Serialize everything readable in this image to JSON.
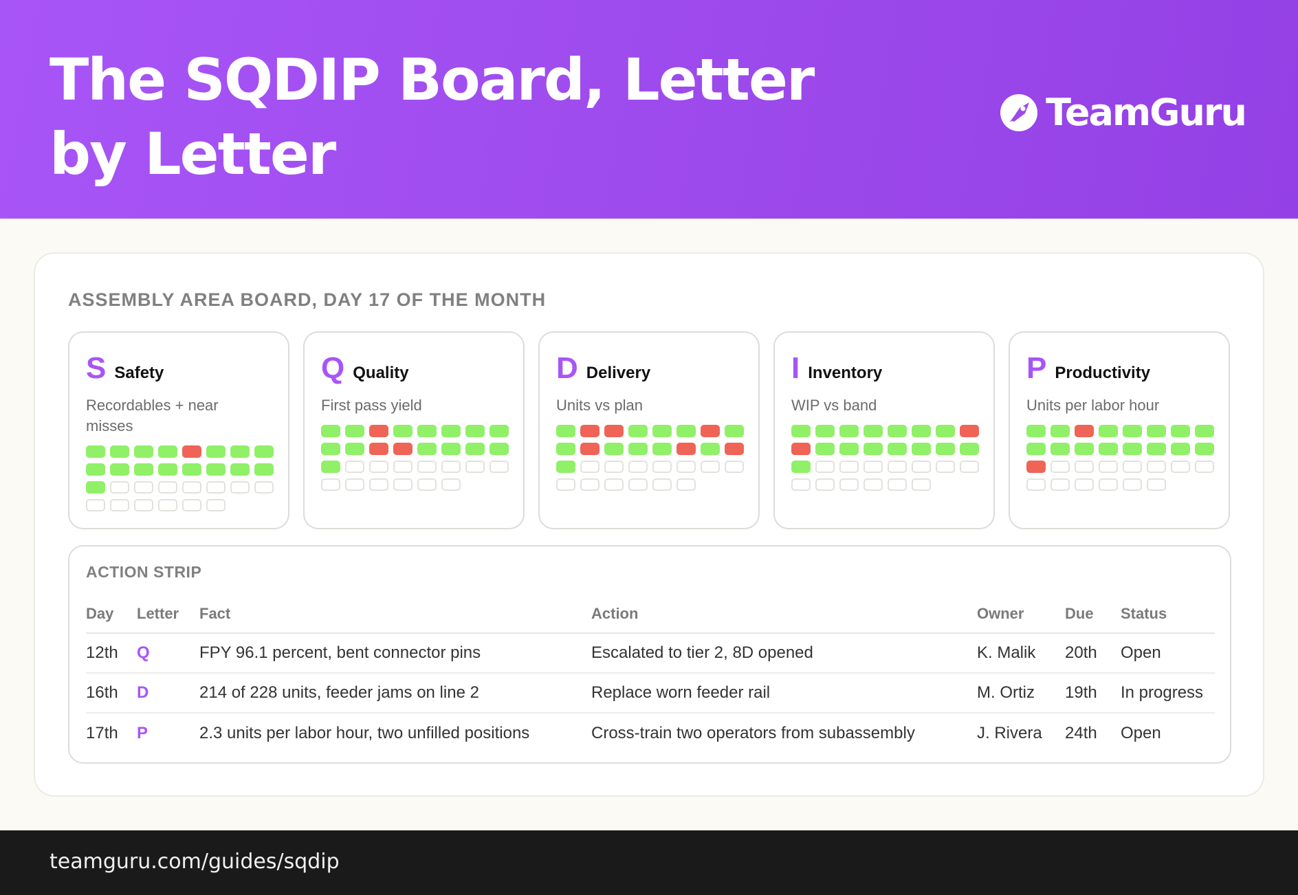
{
  "header": {
    "title": "The SQDIP Board, Letter by Letter",
    "brand": "TeamGuru"
  },
  "board": {
    "title": "ASSEMBLY AREA BOARD, DAY 17 OF THE MONTH",
    "cards": [
      {
        "letter": "S",
        "name": "Safety",
        "subtitle": "Recordables + near misses",
        "days": [
          "g",
          "g",
          "g",
          "g",
          "r",
          "g",
          "g",
          "g",
          "g",
          "g",
          "g",
          "g",
          "g",
          "g",
          "g",
          "g",
          "g"
        ]
      },
      {
        "letter": "Q",
        "name": "Quality",
        "subtitle": "First pass yield",
        "days": [
          "g",
          "g",
          "r",
          "g",
          "g",
          "g",
          "g",
          "g",
          "g",
          "g",
          "r",
          "r",
          "g",
          "g",
          "g",
          "g",
          "g"
        ]
      },
      {
        "letter": "D",
        "name": "Delivery",
        "subtitle": "Units vs plan",
        "days": [
          "g",
          "r",
          "r",
          "g",
          "g",
          "g",
          "r",
          "g",
          "g",
          "r",
          "g",
          "g",
          "g",
          "r",
          "g",
          "r",
          "g"
        ]
      },
      {
        "letter": "I",
        "name": "Inventory",
        "subtitle": "WIP vs band",
        "days": [
          "g",
          "g",
          "g",
          "g",
          "g",
          "g",
          "g",
          "r",
          "r",
          "g",
          "g",
          "g",
          "g",
          "g",
          "g",
          "g",
          "g"
        ]
      },
      {
        "letter": "P",
        "name": "Productivity",
        "subtitle": "Units per labor hour",
        "days": [
          "g",
          "g",
          "r",
          "g",
          "g",
          "g",
          "g",
          "g",
          "g",
          "g",
          "g",
          "g",
          "g",
          "g",
          "g",
          "g",
          "r"
        ]
      }
    ],
    "days_in_month": 30
  },
  "action_strip": {
    "title": "ACTION STRIP",
    "columns": [
      "Day",
      "Letter",
      "Fact",
      "Action",
      "Owner",
      "Due",
      "Status"
    ],
    "rows": [
      [
        "12th",
        "Q",
        "FPY 96.1 percent, bent connector pins",
        "Escalated to tier 2, 8D opened",
        "K. Malik",
        "20th",
        "Open"
      ],
      [
        "16th",
        "D",
        "214 of 228 units, feeder jams on line 2",
        "Replace worn feeder rail",
        "M. Ortiz",
        "19th",
        "In progress"
      ],
      [
        "17th",
        "P",
        "2.3 units per labor hour, two unfilled positions",
        "Cross-train two operators from subassembly",
        "J. Rivera",
        "24th",
        "Open"
      ]
    ]
  },
  "footer": {
    "url": "teamguru.com/guides/sqdip"
  },
  "colors": {
    "accent": "#a855f7",
    "green": "#90f068",
    "red": "#ef6456"
  },
  "icons": {
    "brand": "rocket-logo-icon"
  }
}
